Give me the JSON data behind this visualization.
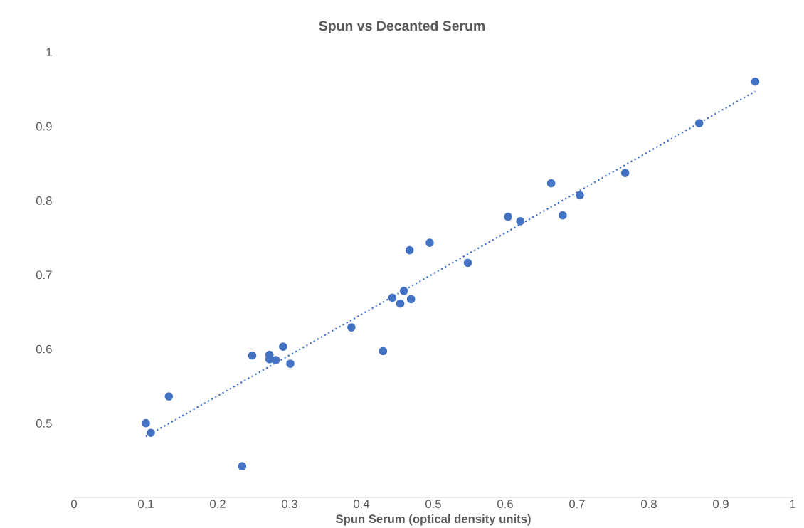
{
  "chart_data": {
    "type": "scatter",
    "title": "Spun vs Decanted Serum",
    "xlabel": "Spun Serum (optical density units)",
    "xlim": [
      0,
      1
    ],
    "xticks": [
      0,
      0.1,
      0.2,
      0.3,
      0.4,
      0.5,
      0.6,
      0.7,
      0.8,
      0.9,
      1
    ],
    "ylim": [
      0.4,
      1
    ],
    "yticks": [
      0.5,
      0.6,
      0.7,
      0.8,
      0.9,
      1
    ],
    "grid": false,
    "series": [
      {
        "color": "#4472c4",
        "marker": "circle",
        "x": [
          0.1,
          0.107,
          0.132,
          0.234,
          0.248,
          0.272,
          0.272,
          0.281,
          0.291,
          0.301,
          0.386,
          0.43,
          0.443,
          0.454,
          0.459,
          0.467,
          0.469,
          0.495,
          0.548,
          0.604,
          0.621,
          0.664,
          0.68,
          0.704,
          0.767,
          0.87,
          0.948
        ],
        "values": [
          0.5,
          0.487,
          0.536,
          0.442,
          0.591,
          0.592,
          0.586,
          0.585,
          0.603,
          0.58,
          0.629,
          0.597,
          0.669,
          0.661,
          0.678,
          0.733,
          0.667,
          0.743,
          0.716,
          0.778,
          0.772,
          0.823,
          0.78,
          0.807,
          0.837,
          0.904,
          0.96
        ]
      },
      {
        "type": "line",
        "color": "#4472c4",
        "line_style": "dotted",
        "marker": "none",
        "x": [
          0.1,
          0.948
        ],
        "values": [
          0.482,
          0.947
        ]
      }
    ]
  }
}
